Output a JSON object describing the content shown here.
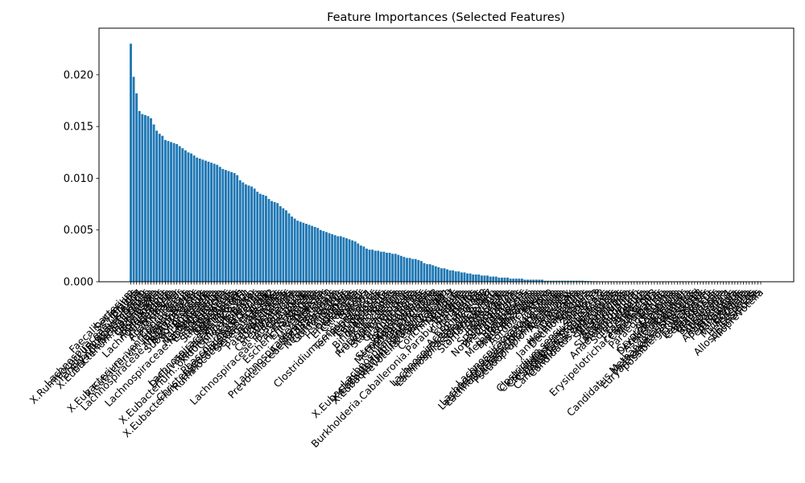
{
  "chart_data": {
    "type": "bar",
    "title": "Feature Importances (Selected Features)",
    "xlabel": "",
    "ylabel": "",
    "ylim": [
      0,
      0.0245
    ],
    "y_ticks": [
      "0.000",
      "0.005",
      "0.010",
      "0.015",
      "0.020"
    ],
    "y_tick_values": [
      0,
      0.005,
      0.01,
      0.015,
      0.02
    ],
    "grid": false,
    "legend": "none",
    "bar_color": "#1f77b4",
    "categories": [
      "Faecalibacterium",
      "Sellimonas",
      "Blautia",
      "Lachnospiraceae.UCG.004",
      "X.Ruminococcus..gnavus.group",
      "Fusicatenibacter",
      "Family.XIII.AD3011.group",
      "Erysipelatoclostridium",
      "X.Eubacterium..hallii.group",
      "Lachnospira",
      "Oscillibacter",
      "Romboutsia",
      "Anaerostipes",
      "Lachnoclostridium",
      "Holdemania",
      "Tyzzerella",
      "Agathobacter",
      "Flavonifractor",
      "Dorea",
      "Coprococcus",
      "X.Eubacterium..ventriosum.group",
      "X.Eubacterium..eligens.group",
      "Intestinibacter",
      "Ruminococcus",
      "Lachnospiraceae.NK4A136.group",
      "Butyricicoccus",
      "Subdoligranulum",
      "Roseburia",
      "Parasutterella",
      "Hungatella",
      "Marvinbryantia",
      "Lachnospiraceae.ND3007.group",
      "Eisenbergiella",
      "Turicibacter",
      "Lactobacillus",
      "Streptococcus",
      "Eggerthella",
      "Coprobacter",
      "Monoglobus",
      "Lachnospiraceae.UCG.001",
      "Defluviitaleaceae.UCG.011",
      "Family.XIII.UCG.001",
      "X.Eubacterium..oxidoreducens.group",
      "Colidextribacter",
      "Bilophila",
      "Akkermansia",
      "Phascolarctobacterium",
      "Christensenellaceae.R.7.group",
      "X.Eubacterium..coprostanoligenes.group",
      "Ruminococcaceae.UCG.002",
      "Senegalimassilia",
      "Alistipes",
      "Bacteroides",
      "Parabacteroides",
      "Odoribacter",
      "Butyricimonas",
      "Barnesiella",
      "Catenibacterium",
      "Collinsella",
      "Adlercreutzia",
      "Lachnospiraceae.FCS020.group",
      "Prevotella",
      "Paraprevotella",
      "Sutterella",
      "Escherichia.Shigella",
      "Enterococcus",
      "Veillonella",
      "Dialister",
      "Megasphaera",
      "Lachnospiraceae.UCG.010",
      "Acidaminococcus",
      "Prevotellaceae.NK3B31.group",
      "Anaerofilum",
      "Negativibacillus",
      "Gordonibacter",
      "Slackia",
      "Allisonella",
      "Haemophilus",
      "Klebsiella",
      "Enterobacter",
      "Citrobacter",
      "Proteus",
      "Sarcina",
      "Clostridium.sensu.stricto.1",
      "Terrisporobacter",
      "Peptococcus",
      "Lactococcus",
      "Leuconostoc",
      "Weissella",
      "Pediococcus",
      "Bifidobacterium",
      "Actinomyces",
      "Rothia",
      "Corynebacterium",
      "Propionibacterium",
      "Cutibacterium",
      "Staphylococcus",
      "Gemella",
      "Granulicatella",
      "Abiotrophia",
      "Pseudomonas",
      "Acinetobacter",
      "Stenotrophomonas",
      "Methanobrevibacter",
      "Methanosphaera",
      "Desulfovibrio",
      "Lachnospiraceae.UCG.008",
      "X.Eubacterium..ruminantium.group",
      "X.Eubacterium..siraeum.group",
      "X.Eubacterium..nodatum.group",
      "Prevotellaceae.UCG.001",
      "Prevotella.9",
      "Prevotella.7",
      "Conchiformibius",
      "Neisseria",
      "Kingella",
      "Eikenella",
      "Burkholderia.Caballeronia.Paraburkholderia",
      "Ralstonia",
      "Cupriavidus",
      "Delftia",
      "Comamonas",
      "Achromobacter",
      "Lachnospiraceae.UCG.003",
      "Lachnospiraceae.UCG.006",
      "Lachnospiraceae.UCG.007",
      "Oribacterium",
      "Shuttleworthia",
      "Stomatobaculum",
      "Moryella",
      "Johnsonella",
      "Howardella",
      "Sphingomonas",
      "Sphingobium",
      "Novosphingobium",
      "Brevundimonas",
      "Caulobacter",
      "Paracoccus",
      "Rhodobacter",
      "Methylobacterium",
      "Bradyrhizobium",
      "Mesorhizobium",
      "Rhizobium",
      "Agrobacterium",
      "Bosea",
      "Afipia",
      "Lachnospiraceae.UCG.009",
      "Lachnospiraceae.AC2044.group",
      "Lachnospiraceae.XPB1014.group",
      "Lachnospiraceae.NC2004.group",
      "Acidipropionibacterium",
      "Pseudopropionibacterium",
      "Acidovorax",
      "Variovorax",
      "Massilia",
      "Duganella",
      "Herbaspirillum",
      "Janthinobacterium",
      "Dechloromonas",
      "Azospira",
      "Thauera",
      "Zoogloea",
      "Clostridium.sensu.stricto.13",
      "Clostridium.sensu.stricto.18",
      "Clostridium.sensu.stricto.2",
      "Candidatus.Stoquefichus",
      "Candidatus.Soleaferrea",
      "Candidatus.Saccharimonas",
      "Candidatus.Arthromitus",
      "Mitsuokella",
      "Megamonas",
      "Selenomonas",
      "Anaerovibrio",
      "Succinivibrio",
      "Succinatimonas",
      "Ruminobacter",
      "Anaerobiospirillum",
      "Turicimonas",
      "Solobacterium",
      "Bulleidia",
      "Faecalitalea",
      "Faecalicoccus",
      "Erysipelotrichaceae.UCG.003",
      "Coprobacillus",
      "Merdibacter",
      "Dielma",
      "Paraeggerthella",
      "Enorma",
      "Olsenella",
      "Atopobium",
      "Cryptobacterium",
      "Denitrobacterium",
      "Asaccharobacter",
      "Holdemanella",
      "Kandleria",
      "Candidatus.Methanomethylophilus",
      "Methanomassiliicoccus",
      "Euryarchaeota.unclassified",
      "possible.genus.Sk018",
      "Victivallis",
      "Oxalobacter",
      "Lentisphaera",
      "Cerasicoccus",
      "Fibrobacter",
      "Treponema",
      "Brachyspira",
      "Spirochaeta",
      "Leptospira",
      "Allisonella.1",
      "Anaerococcus",
      "Finegoldia",
      "Peptoniphilus",
      "Parvimonas",
      "Ezakiella",
      "Murdochiella",
      "Fenollaria",
      "Helcococcus",
      "Tissierella",
      "Allosoptinemonas",
      "Alloprevotella"
    ],
    "values": [
      0.023,
      0.0198,
      0.0182,
      0.0165,
      0.0162,
      0.0161,
      0.016,
      0.0158,
      0.0152,
      0.0146,
      0.0143,
      0.0141,
      0.0137,
      0.0136,
      0.0135,
      0.0134,
      0.0133,
      0.0131,
      0.0129,
      0.0127,
      0.0125,
      0.0124,
      0.0122,
      0.012,
      0.0119,
      0.0118,
      0.0117,
      0.0116,
      0.0115,
      0.0114,
      0.0113,
      0.0111,
      0.0109,
      0.0108,
      0.0107,
      0.0106,
      0.0105,
      0.0103,
      0.0098,
      0.0096,
      0.0094,
      0.0093,
      0.0092,
      0.009,
      0.0087,
      0.0085,
      0.0084,
      0.0083,
      0.008,
      0.0078,
      0.0077,
      0.0076,
      0.0073,
      0.0071,
      0.0069,
      0.0066,
      0.0063,
      0.0061,
      0.0059,
      0.0058,
      0.0057,
      0.0056,
      0.0055,
      0.0054,
      0.0053,
      0.0052,
      0.005,
      0.0049,
      0.0048,
      0.0047,
      0.0046,
      0.0045,
      0.0044,
      0.0044,
      0.0043,
      0.0042,
      0.0041,
      0.004,
      0.0039,
      0.0037,
      0.0035,
      0.0034,
      0.0032,
      0.0031,
      0.0031,
      0.003,
      0.003,
      0.0029,
      0.0029,
      0.0028,
      0.0028,
      0.0027,
      0.0027,
      0.0026,
      0.0025,
      0.0024,
      0.0023,
      0.0023,
      0.0022,
      0.0022,
      0.0021,
      0.002,
      0.0018,
      0.0017,
      0.0017,
      0.0016,
      0.0015,
      0.0014,
      0.0013,
      0.0013,
      0.0012,
      0.0011,
      0.0011,
      0.001,
      0.001,
      0.0009,
      0.0009,
      0.0008,
      0.0008,
      0.0007,
      0.0007,
      0.0007,
      0.0006,
      0.0006,
      0.0006,
      0.0005,
      0.0005,
      0.0005,
      0.0004,
      0.0004,
      0.0004,
      0.0004,
      0.0003,
      0.0003,
      0.0003,
      0.0003,
      0.0003,
      0.0002,
      0.0002,
      0.0002,
      0.0002,
      0.0002,
      0.0002,
      0.0002,
      0.0001,
      0.0001,
      0.0001,
      0.0001,
      0.0001,
      0.0001,
      0.0001,
      0.0001,
      0.0001,
      0.0001,
      0.0001,
      0.0001,
      0.0001,
      0.0001,
      8e-05,
      7e-05,
      6e-05,
      5e-05,
      5e-05,
      4e-05,
      4e-05,
      3e-05,
      3e-05,
      3e-05,
      2e-05,
      2e-05,
      2e-05,
      2e-05,
      1e-05,
      1e-05,
      1e-05,
      1e-05,
      1e-05,
      1e-05,
      1e-05,
      1e-05,
      5e-06,
      5e-06,
      5e-06,
      4e-06,
      4e-06,
      4e-06,
      3e-06,
      3e-06,
      3e-06,
      3e-06,
      2e-06,
      2e-06,
      2e-06,
      2e-06,
      2e-06,
      1e-06,
      1e-06,
      1e-06,
      1e-06,
      1e-06,
      0,
      0,
      0,
      0,
      0,
      0,
      0,
      0,
      0,
      0,
      0,
      0,
      0,
      0,
      0,
      0,
      0,
      0,
      0,
      0
    ]
  }
}
